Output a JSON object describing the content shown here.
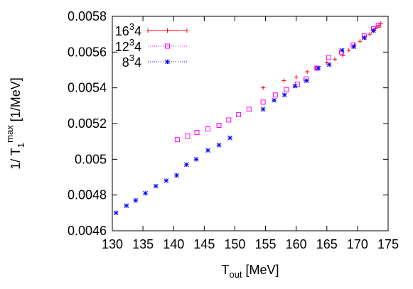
{
  "chart_data": {
    "type": "scatter",
    "title": "",
    "xlabel": {
      "main": "T",
      "sub": "out",
      "rest": " [MeV]"
    },
    "ylabel": {
      "prefix": "1/ T",
      "sub": "1",
      "sup": "max",
      "rest": " [1/MeV]"
    },
    "xlim": [
      130,
      175
    ],
    "ylim": [
      0.0046,
      0.0058
    ],
    "xticks": [
      "130",
      "135",
      "140",
      "145",
      "150",
      "155",
      "160",
      "165",
      "170",
      "175"
    ],
    "yticks": [
      "0.0046",
      "0.0048",
      "0.005",
      "0.0052",
      "0.0054",
      "0.0056",
      "0.0058"
    ],
    "grid": false,
    "legend_position": "top-left",
    "series": [
      {
        "name": "16^3 4",
        "label": {
          "base": "16",
          "sup": "3",
          "tail": "4"
        },
        "color": "#ff0000",
        "marker": "plus",
        "line": "solid",
        "points": [
          [
            154.6,
            0.0054
          ],
          [
            158.0,
            0.00544
          ],
          [
            160.0,
            0.00546
          ],
          [
            161.8,
            0.00549
          ],
          [
            163.2,
            0.00551
          ],
          [
            165.0,
            0.00554
          ],
          [
            166.3,
            0.00556
          ],
          [
            167.6,
            0.00558
          ],
          [
            168.6,
            0.00561
          ],
          [
            169.5,
            0.00564
          ],
          [
            170.4,
            0.00566
          ],
          [
            171.2,
            0.00568
          ],
          [
            172.0,
            0.0057
          ],
          [
            172.6,
            0.00572
          ],
          [
            172.9,
            0.00573
          ],
          [
            173.2,
            0.00574
          ],
          [
            173.5,
            0.00575
          ],
          [
            173.8,
            0.00576
          ]
        ]
      },
      {
        "name": "12^3 4",
        "label": {
          "base": "12",
          "sup": "3",
          "tail": "4"
        },
        "color": "#ff00ff",
        "marker": "square",
        "line": "dotted",
        "points": [
          [
            140.6,
            0.00511
          ],
          [
            142.3,
            0.00513
          ],
          [
            143.8,
            0.00515
          ],
          [
            145.6,
            0.00517
          ],
          [
            147.4,
            0.00519
          ],
          [
            149.0,
            0.00522
          ],
          [
            150.6,
            0.00525
          ],
          [
            152.3,
            0.00528
          ],
          [
            154.6,
            0.00532
          ],
          [
            156.6,
            0.00536
          ],
          [
            158.4,
            0.00539
          ],
          [
            160.2,
            0.00542
          ],
          [
            161.6,
            0.00545
          ],
          [
            163.4,
            0.00551
          ],
          [
            165.3,
            0.00557
          ],
          [
            167.4,
            0.0056
          ],
          [
            169.3,
            0.00564
          ],
          [
            171.1,
            0.00569
          ],
          [
            172.6,
            0.00573
          ],
          [
            173.4,
            0.00575
          ]
        ]
      },
      {
        "name": "8^3 4",
        "label": {
          "base": "8",
          "sup": "3",
          "tail": "4"
        },
        "color": "#0000ff",
        "marker": "star",
        "line": "dotted",
        "points": [
          [
            130.6,
            0.0047
          ],
          [
            132.3,
            0.00474
          ],
          [
            133.8,
            0.00477
          ],
          [
            135.4,
            0.00481
          ],
          [
            137.1,
            0.00485
          ],
          [
            138.8,
            0.00488
          ],
          [
            140.5,
            0.00491
          ],
          [
            142.1,
            0.00497
          ],
          [
            143.7,
            0.005
          ],
          [
            145.6,
            0.00505
          ],
          [
            147.4,
            0.00508
          ],
          [
            149.2,
            0.00512
          ],
          [
            154.6,
            0.00528
          ],
          [
            156.4,
            0.00533
          ],
          [
            158.1,
            0.00536
          ],
          [
            159.8,
            0.00541
          ],
          [
            161.7,
            0.00544
          ],
          [
            163.6,
            0.00551
          ],
          [
            165.4,
            0.00553
          ],
          [
            167.5,
            0.00561
          ],
          [
            169.4,
            0.00563
          ],
          [
            171.1,
            0.00568
          ],
          [
            172.6,
            0.00572
          ]
        ]
      }
    ]
  }
}
